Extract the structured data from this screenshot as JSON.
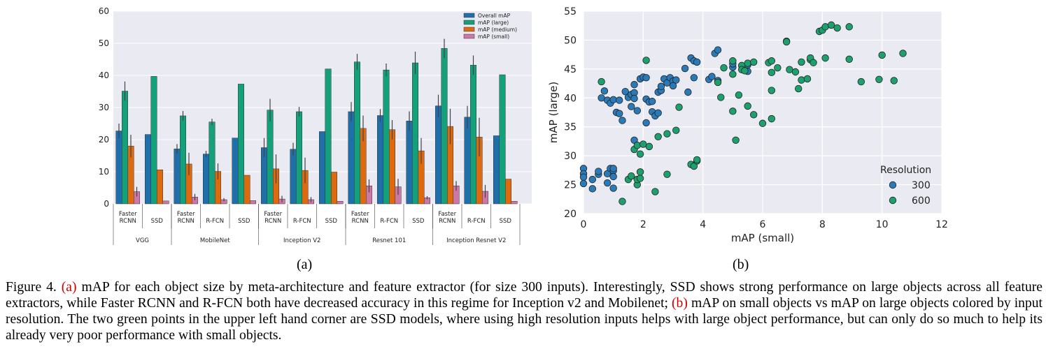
{
  "colors": {
    "plot_bg": "#eaeaf2",
    "grid": "#ffffff",
    "overall": "#1f6fab",
    "large": "#14a07a",
    "medium": "#dd6a0e",
    "small": "#cc78a7",
    "res300": "#2a7ab8",
    "res600": "#1ca06e"
  },
  "chart_data": [
    {
      "id": "a",
      "type": "bar",
      "panel_label": "(a)",
      "ylim": [
        0,
        60
      ],
      "yticks": [
        "0",
        "10",
        "20",
        "30",
        "40",
        "50",
        "60"
      ],
      "legend_position": "top-right",
      "series": [
        {
          "name": "Overall mAP",
          "key": "overall"
        },
        {
          "name": "mAP (large)",
          "key": "large"
        },
        {
          "name": "mAP (medium)",
          "key": "medium"
        },
        {
          "name": "mAP (small)",
          "key": "small"
        }
      ],
      "groups": [
        {
          "name": "VGG",
          "bars": [
            {
              "label": [
                "Faster",
                "RCNN"
              ],
              "values": [
                22.7,
                35.1,
                18.0,
                3.8
              ],
              "err": [
                2.3,
                3.0,
                3.5,
                1.5
              ]
            },
            {
              "label": [
                "SSD"
              ],
              "values": [
                21.6,
                39.7,
                10.6,
                0.9
              ],
              "err": null
            }
          ]
        },
        {
          "name": "MobileNet",
          "bars": [
            {
              "label": [
                "Faster",
                "RCNN"
              ],
              "values": [
                17.1,
                27.4,
                12.4,
                2.1
              ],
              "err": [
                1.5,
                1.5,
                3.5,
                1.0
              ]
            },
            {
              "label": [
                "R-FCN"
              ],
              "values": [
                15.5,
                25.5,
                10.1,
                1.3
              ],
              "err": [
                1.0,
                1.0,
                2.5,
                0.5
              ]
            },
            {
              "label": [
                "SSD"
              ],
              "values": [
                20.5,
                37.3,
                8.9,
                1.0
              ],
              "err": null
            }
          ]
        },
        {
          "name": "Inception V2",
          "bars": [
            {
              "label": [
                "Faster",
                "RCNN"
              ],
              "values": [
                17.5,
                29.2,
                10.9,
                1.5
              ],
              "err": [
                3.0,
                3.5,
                4.5,
                1.0
              ]
            },
            {
              "label": [
                "R-FCN"
              ],
              "values": [
                17.0,
                28.7,
                10.4,
                1.3
              ],
              "err": [
                2.0,
                1.5,
                4.0,
                0.8
              ]
            },
            {
              "label": [
                "SSD"
              ],
              "values": [
                22.5,
                42.0,
                9.9,
                0.8
              ],
              "err": null
            }
          ]
        },
        {
          "name": "Resnet 101",
          "bars": [
            {
              "label": [
                "Faster",
                "RCNN"
              ],
              "values": [
                28.7,
                44.2,
                23.5,
                5.6
              ],
              "err": [
                3.0,
                2.5,
                4.0,
                2.0
              ]
            },
            {
              "label": [
                "R-FCN"
              ],
              "values": [
                27.5,
                41.7,
                23.1,
                5.3
              ],
              "err": [
                2.0,
                2.0,
                3.0,
                2.5
              ]
            },
            {
              "label": [
                "SSD"
              ],
              "values": [
                25.8,
                43.9,
                16.5,
                1.9
              ],
              "err": [
                3.0,
                3.5,
                4.0,
                0.5
              ]
            }
          ]
        },
        {
          "name": "Inception Resnet V2",
          "bars": [
            {
              "label": [
                "Faster",
                "RCNN"
              ],
              "values": [
                30.5,
                48.4,
                24.1,
                5.6
              ],
              "err": [
                3.5,
                3.0,
                5.5,
                1.5
              ]
            },
            {
              "label": [
                "R-FCN"
              ],
              "values": [
                27.0,
                43.2,
                20.8,
                3.9
              ],
              "err": [
                3.5,
                3.0,
                6.0,
                2.0
              ]
            },
            {
              "label": [
                "SSD"
              ],
              "values": [
                21.2,
                40.2,
                7.7,
                0.8
              ],
              "err": null
            }
          ]
        }
      ]
    },
    {
      "id": "b",
      "type": "scatter",
      "panel_label": "(b)",
      "xlabel": "mAP (small)",
      "ylabel": "mAP (large)",
      "xlim": [
        0,
        12
      ],
      "ylim": [
        20,
        55
      ],
      "xticks": [
        0,
        2,
        4,
        6,
        8,
        10,
        12
      ],
      "yticks": [
        20,
        25,
        30,
        35,
        40,
        45,
        50,
        55
      ],
      "grid": true,
      "legend_title": "Resolution",
      "legend_position": "bottom-right",
      "series": [
        {
          "name": "300",
          "color_key": "res300",
          "points": [
            [
              0.0,
              27.8
            ],
            [
              0.0,
              26.9
            ],
            [
              0.0,
              26.3
            ],
            [
              0.0,
              25.2
            ],
            [
              0.3,
              24.3
            ],
            [
              0.3,
              25.9
            ],
            [
              0.5,
              26.8
            ],
            [
              0.5,
              27.3
            ],
            [
              0.8,
              25.3
            ],
            [
              0.8,
              26.9
            ],
            [
              0.9,
              27.8
            ],
            [
              1.0,
              27.4
            ],
            [
              1.0,
              27.8
            ],
            [
              1.0,
              26.4
            ],
            [
              1.0,
              24.4
            ],
            [
              0.6,
              40.0
            ],
            [
              0.7,
              41.2
            ],
            [
              0.8,
              39.6
            ],
            [
              0.9,
              39.1
            ],
            [
              1.0,
              39.7
            ],
            [
              1.1,
              37.5
            ],
            [
              1.2,
              39.6
            ],
            [
              1.2,
              37.3
            ],
            [
              1.3,
              36.1
            ],
            [
              1.4,
              41.1
            ],
            [
              1.5,
              40.1
            ],
            [
              1.6,
              40.6
            ],
            [
              1.6,
              38.5
            ],
            [
              1.7,
              40.9
            ],
            [
              1.7,
              39.9
            ],
            [
              1.7,
              42.3
            ],
            [
              1.8,
              37.8
            ],
            [
              1.9,
              43.3
            ],
            [
              2.0,
              43.6
            ],
            [
              2.1,
              43.5
            ],
            [
              2.1,
              39.8
            ],
            [
              2.1,
              35.7
            ],
            [
              2.2,
              39.3
            ],
            [
              2.3,
              39.4
            ],
            [
              2.3,
              37.6
            ],
            [
              2.4,
              36.9
            ],
            [
              2.5,
              37.4
            ],
            [
              2.5,
              41.0
            ],
            [
              2.6,
              41.3
            ],
            [
              2.6,
              42.0
            ],
            [
              2.7,
              43.3
            ],
            [
              2.8,
              42.6
            ],
            [
              2.9,
              43.5
            ],
            [
              3.0,
              42.9
            ],
            [
              3.1,
              43.1
            ],
            [
              3.0,
              42.1
            ],
            [
              3.4,
              45.1
            ],
            [
              3.6,
              46.9
            ],
            [
              3.7,
              46.4
            ],
            [
              3.7,
              43.5
            ],
            [
              3.8,
              46.2
            ],
            [
              3.5,
              41.0
            ],
            [
              1.7,
              32.7
            ],
            [
              4.2,
              43.2
            ],
            [
              4.3,
              43.7
            ],
            [
              4.4,
              47.7
            ],
            [
              4.5,
              48.3
            ],
            [
              4.5,
              43.0
            ],
            [
              5.0,
              45.3
            ],
            [
              5.0,
              45.9
            ],
            [
              5.5,
              45.7
            ],
            [
              5.5,
              44.6
            ]
          ]
        },
        {
          "name": "600",
          "color_key": "res600",
          "points": [
            [
              0.6,
              42.8
            ],
            [
              1.3,
              22.1
            ],
            [
              1.5,
              25.9
            ],
            [
              1.6,
              26.5
            ],
            [
              1.8,
              25.0
            ],
            [
              1.8,
              25.9
            ],
            [
              1.9,
              26.1
            ],
            [
              1.9,
              27.2
            ],
            [
              1.7,
              31.1
            ],
            [
              1.8,
              31.8
            ],
            [
              1.9,
              30.3
            ],
            [
              2.0,
              32.0
            ],
            [
              2.2,
              31.6
            ],
            [
              2.4,
              23.8
            ],
            [
              2.5,
              33.3
            ],
            [
              2.8,
              33.8
            ],
            [
              2.8,
              26.8
            ],
            [
              3.1,
              34.4
            ],
            [
              3.2,
              38.4
            ],
            [
              2.1,
              46.5
            ],
            [
              3.6,
              28.5
            ],
            [
              3.7,
              28.2
            ],
            [
              3.8,
              29.1
            ],
            [
              3.8,
              29.3
            ],
            [
              4.5,
              42.7
            ],
            [
              4.6,
              40.1
            ],
            [
              4.7,
              45.2
            ],
            [
              5.0,
              44.1
            ],
            [
              5.0,
              46.4
            ],
            [
              5.0,
              37.7
            ],
            [
              5.1,
              32.7
            ],
            [
              5.2,
              40.5
            ],
            [
              5.3,
              45.6
            ],
            [
              5.3,
              44.9
            ],
            [
              5.4,
              44.7
            ],
            [
              5.5,
              46.0
            ],
            [
              5.5,
              38.6
            ],
            [
              5.7,
              37.1
            ],
            [
              5.7,
              46.2
            ],
            [
              6.0,
              35.6
            ],
            [
              6.2,
              46.1
            ],
            [
              6.3,
              36.4
            ],
            [
              6.3,
              41.3
            ],
            [
              6.3,
              44.4
            ],
            [
              6.3,
              46.4
            ],
            [
              6.5,
              45.2
            ],
            [
              6.8,
              49.8
            ],
            [
              6.8,
              49.7
            ],
            [
              6.9,
              44.9
            ],
            [
              7.1,
              44.5
            ],
            [
              7.2,
              41.6
            ],
            [
              7.3,
              43.1
            ],
            [
              7.3,
              46.2
            ],
            [
              7.5,
              43.3
            ],
            [
              7.6,
              46.6
            ],
            [
              7.6,
              46.9
            ],
            [
              7.7,
              46.1
            ],
            [
              7.9,
              51.5
            ],
            [
              8.0,
              51.7
            ],
            [
              8.1,
              46.9
            ],
            [
              8.1,
              52.3
            ],
            [
              8.3,
              52.6
            ],
            [
              8.5,
              52.1
            ],
            [
              8.9,
              52.3
            ],
            [
              8.9,
              46.7
            ],
            [
              9.3,
              42.8
            ],
            [
              9.9,
              43.2
            ],
            [
              10.0,
              47.4
            ],
            [
              10.4,
              43.0
            ],
            [
              10.7,
              47.7
            ]
          ]
        }
      ]
    }
  ],
  "caption": {
    "figure_label": "Figure 4.",
    "a_ref": "(a)",
    "a_text": "mAP for each object size by meta-architecture and feature extractor (for size 300 inputs). Interestingly, SSD shows strong performance on large objects across all feature extractors, while Faster RCNN and R-FCN both have decreased accuracy in this regime for Inception v2 and Mobilenet;",
    "b_ref": "(b)",
    "b_text": "mAP on small objects vs mAP on large objects colored by input resolution. The two green points in the upper left hand corner are SSD models, where using high resolution inputs helps with large object performance, but can only do so much to help its already very poor performance with small objects."
  }
}
